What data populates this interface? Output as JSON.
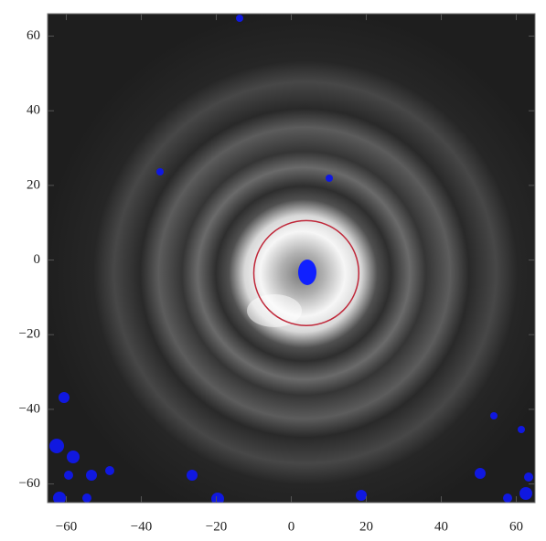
{
  "chart_data": {
    "type": "image",
    "xlim": [
      -65,
      65
    ],
    "ylim": [
      -65,
      66
    ],
    "xticks": [
      {
        "value": -60,
        "label": "−60"
      },
      {
        "value": -40,
        "label": "−40"
      },
      {
        "value": -20,
        "label": "−20"
      },
      0,
      20,
      40,
      60
    ],
    "yticks": [
      {
        "value": -60,
        "label": "−60"
      },
      {
        "value": -40,
        "label": "−40"
      },
      {
        "value": -20,
        "label": "−20"
      },
      0,
      20,
      40,
      60
    ],
    "circle": {
      "cx": 4,
      "cy": -3.5,
      "r": 14,
      "color": "#c0283a"
    }
  }
}
